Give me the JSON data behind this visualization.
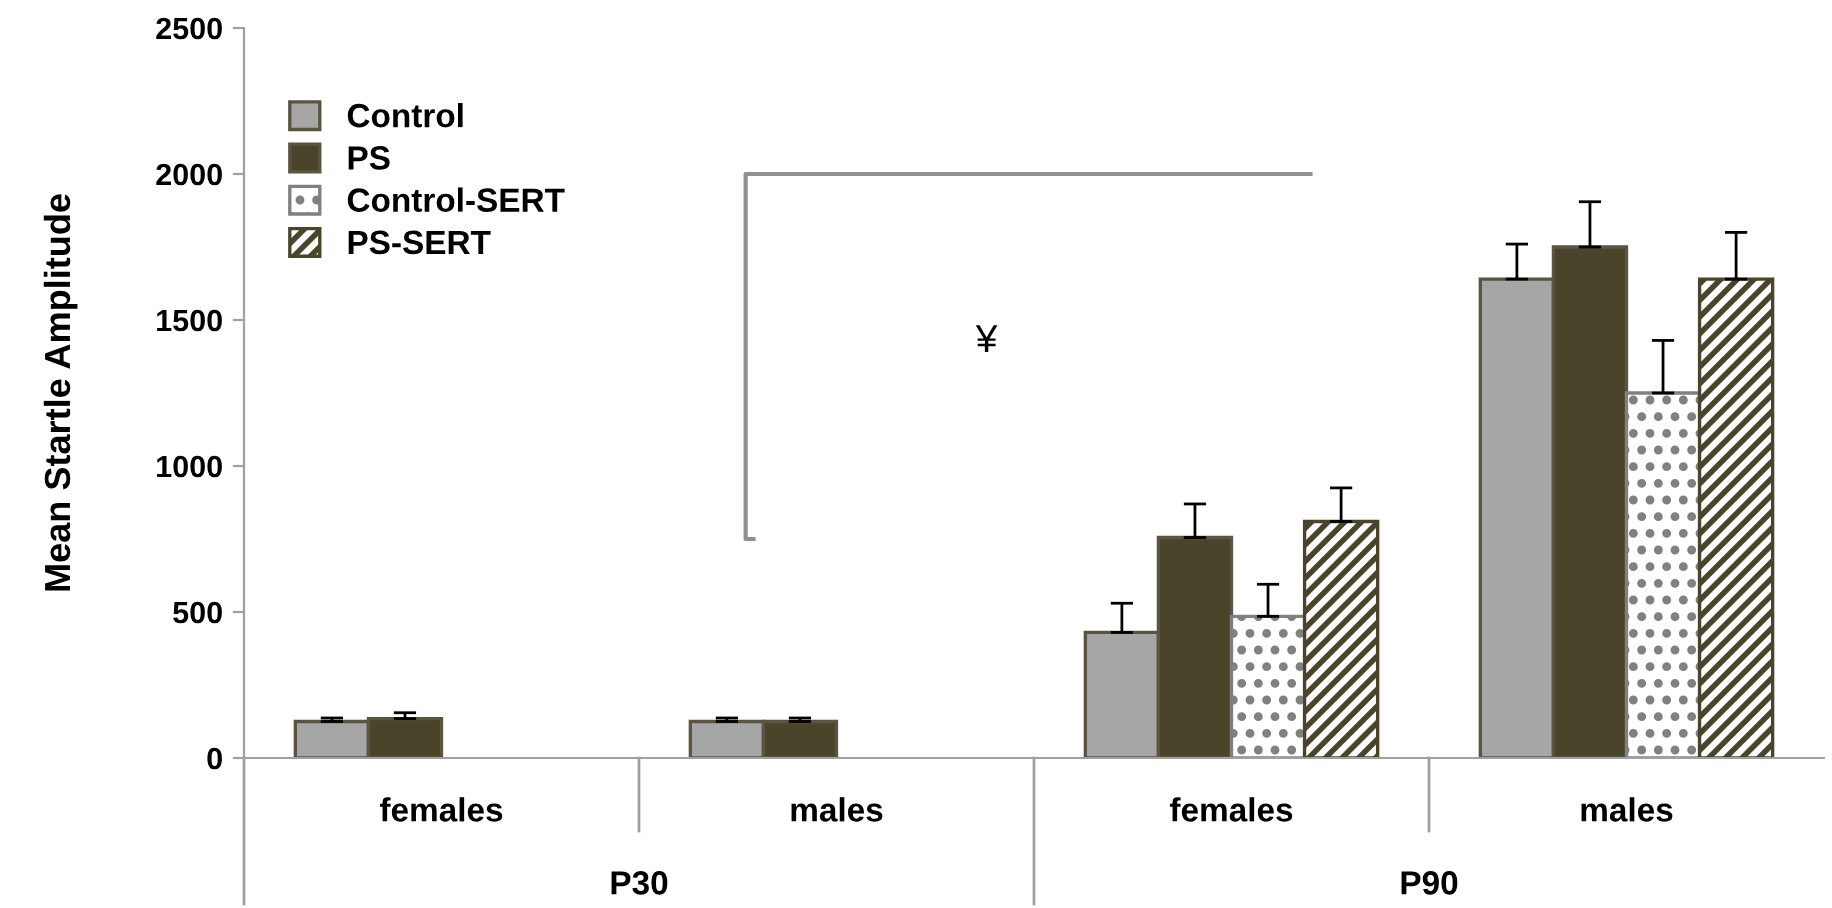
{
  "chart_data": {
    "type": "bar",
    "ylabel": "Mean Startle Amplitude",
    "categories": [
      "females",
      "males",
      "females",
      "males"
    ],
    "series": [
      {
        "name": "Control",
        "color": "#a6a6a6",
        "values": [
          125,
          125,
          430,
          1640
        ],
        "errors": [
          [
            125,
            137
          ],
          [
            125,
            137
          ],
          [
            430,
            530
          ],
          [
            1640,
            1760
          ]
        ]
      },
      {
        "name": "PS",
        "color": "#4a442a",
        "values": [
          135,
          125,
          755,
          1750
        ],
        "errors": [
          [
            135,
            155
          ],
          [
            125,
            137
          ],
          [
            755,
            870
          ],
          [
            1750,
            1905
          ]
        ]
      },
      {
        "name": "Control-SERT",
        "color": "#808080",
        "values": [
          null,
          null,
          485,
          1250
        ],
        "errors": [
          null,
          null,
          [
            485,
            595
          ],
          [
            1250,
            1430
          ]
        ]
      },
      {
        "name": "PS-SERT",
        "color": "#4a442a",
        "values": [
          null,
          null,
          810,
          1640
        ],
        "errors": [
          null,
          null,
          [
            810,
            925
          ],
          [
            1640,
            1800
          ]
        ]
      }
    ],
    "annotations": [
      "¥",
      "P30",
      "P90"
    ],
    "ylim": [
      0,
      2500
    ],
    "yticks": [
      0,
      500,
      1000,
      1500,
      2000,
      2500
    ],
    "grid": false,
    "legend": "top left"
  }
}
